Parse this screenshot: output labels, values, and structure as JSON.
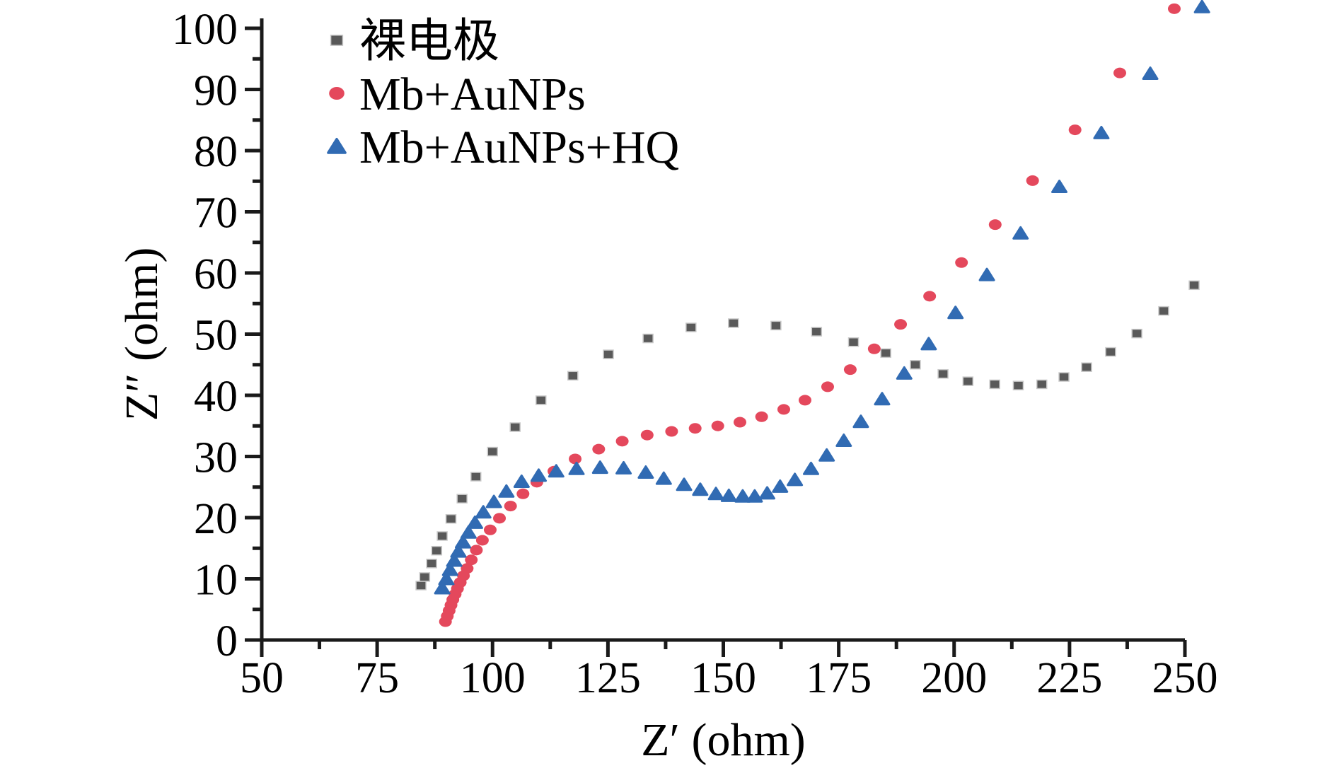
{
  "chart_data": {
    "type": "scatter",
    "title": "",
    "xlabel": "Z′ (ohm)",
    "ylabel": "Z″ (ohm)",
    "xlim": [
      50,
      250
    ],
    "ylim": [
      0,
      100
    ],
    "x_ticks": [
      50,
      75,
      100,
      125,
      150,
      175,
      200,
      225,
      250
    ],
    "y_ticks": [
      0,
      10,
      20,
      30,
      40,
      50,
      60,
      70,
      80,
      90,
      100
    ],
    "x_minor_ticks": [
      62.5,
      87.5,
      112.5,
      137.5,
      162.5,
      187.5,
      212.5,
      237.5
    ],
    "y_minor_ticks": [
      5,
      15,
      25,
      35,
      45,
      55,
      65,
      75,
      85,
      95
    ],
    "grid": false,
    "legend_position": "top-left",
    "axis_color": "#1a1a1a",
    "series": [
      {
        "name": "裸电极",
        "marker": "square",
        "color": "#595959",
        "points": [
          [
            84.5,
            8.9
          ],
          [
            85.3,
            10.3
          ],
          [
            86.8,
            12.5
          ],
          [
            87.9,
            14.6
          ],
          [
            89.1,
            17.0
          ],
          [
            91.0,
            19.8
          ],
          [
            93.4,
            23.1
          ],
          [
            96.4,
            26.7
          ],
          [
            100.0,
            30.8
          ],
          [
            104.9,
            34.8
          ],
          [
            110.5,
            39.2
          ],
          [
            117.4,
            43.2
          ],
          [
            125.1,
            46.7
          ],
          [
            133.7,
            49.3
          ],
          [
            143.0,
            51.1
          ],
          [
            152.2,
            51.8
          ],
          [
            161.4,
            51.4
          ],
          [
            170.2,
            50.4
          ],
          [
            178.2,
            48.7
          ],
          [
            185.2,
            46.9
          ],
          [
            191.6,
            45.0
          ],
          [
            197.6,
            43.5
          ],
          [
            203.0,
            42.3
          ],
          [
            208.8,
            41.8
          ],
          [
            213.9,
            41.6
          ],
          [
            219.0,
            41.8
          ],
          [
            223.8,
            43.0
          ],
          [
            228.7,
            44.6
          ],
          [
            233.9,
            47.1
          ],
          [
            239.6,
            50.1
          ],
          [
            245.4,
            53.8
          ],
          [
            252.0,
            58.0
          ]
        ]
      },
      {
        "name": "Mb+AuNPs",
        "marker": "circle",
        "color": "#e4485c",
        "points": [
          [
            89.8,
            3.0
          ],
          [
            90.2,
            3.9
          ],
          [
            90.6,
            4.8
          ],
          [
            91.0,
            5.7
          ],
          [
            91.4,
            6.6
          ],
          [
            91.9,
            7.5
          ],
          [
            92.4,
            8.4
          ],
          [
            93.0,
            9.4
          ],
          [
            93.7,
            10.5
          ],
          [
            94.5,
            11.7
          ],
          [
            95.4,
            13.1
          ],
          [
            96.5,
            14.7
          ],
          [
            97.8,
            16.3
          ],
          [
            99.5,
            18.0
          ],
          [
            101.5,
            19.9
          ],
          [
            103.9,
            21.9
          ],
          [
            106.6,
            23.9
          ],
          [
            109.6,
            25.8
          ],
          [
            113.3,
            27.6
          ],
          [
            117.9,
            29.6
          ],
          [
            123.0,
            31.2
          ],
          [
            128.1,
            32.5
          ],
          [
            133.5,
            33.5
          ],
          [
            138.8,
            34.1
          ],
          [
            143.9,
            34.6
          ],
          [
            148.8,
            35.0
          ],
          [
            153.6,
            35.6
          ],
          [
            158.3,
            36.5
          ],
          [
            163.1,
            37.7
          ],
          [
            167.7,
            39.2
          ],
          [
            172.6,
            41.4
          ],
          [
            177.5,
            44.2
          ],
          [
            182.7,
            47.6
          ],
          [
            188.4,
            51.6
          ],
          [
            194.7,
            56.2
          ],
          [
            201.6,
            61.7
          ],
          [
            208.9,
            67.9
          ],
          [
            217.0,
            75.1
          ],
          [
            226.2,
            83.4
          ],
          [
            235.9,
            92.7
          ],
          [
            247.7,
            103.2
          ]
        ]
      },
      {
        "name": "Mb+AuNPs+HQ",
        "marker": "triangle",
        "color": "#316bb3",
        "points": [
          [
            89.1,
            8.5
          ],
          [
            90.0,
            10.0
          ],
          [
            90.8,
            11.5
          ],
          [
            91.7,
            13.0
          ],
          [
            92.6,
            14.5
          ],
          [
            93.6,
            16.0
          ],
          [
            94.8,
            17.6
          ],
          [
            96.2,
            19.2
          ],
          [
            98.0,
            20.9
          ],
          [
            100.3,
            22.6
          ],
          [
            103.0,
            24.3
          ],
          [
            106.3,
            25.9
          ],
          [
            110.0,
            26.9
          ],
          [
            113.8,
            27.6
          ],
          [
            118.2,
            28.0
          ],
          [
            123.3,
            28.2
          ],
          [
            128.4,
            28.1
          ],
          [
            133.2,
            27.4
          ],
          [
            137.1,
            26.4
          ],
          [
            141.5,
            25.4
          ],
          [
            145.0,
            24.6
          ],
          [
            148.4,
            23.9
          ],
          [
            151.2,
            23.6
          ],
          [
            154.2,
            23.5
          ],
          [
            156.8,
            23.5
          ],
          [
            159.5,
            24.0
          ],
          [
            162.3,
            25.1
          ],
          [
            165.5,
            26.2
          ],
          [
            169.0,
            28.0
          ],
          [
            172.4,
            30.2
          ],
          [
            176.1,
            32.6
          ],
          [
            179.8,
            35.7
          ],
          [
            184.4,
            39.4
          ],
          [
            189.2,
            43.6
          ],
          [
            194.5,
            48.4
          ],
          [
            200.3,
            53.5
          ],
          [
            207.1,
            59.7
          ],
          [
            214.4,
            66.5
          ],
          [
            222.8,
            74.1
          ],
          [
            231.9,
            82.9
          ],
          [
            242.5,
            92.6
          ],
          [
            253.7,
            103.5
          ]
        ]
      }
    ]
  }
}
